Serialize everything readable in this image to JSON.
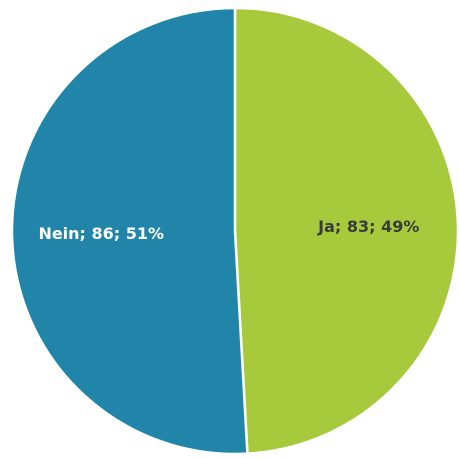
{
  "chart_data": {
    "type": "pie",
    "categories": [
      "Ja",
      "Nein"
    ],
    "values": [
      83,
      86
    ],
    "value_labels": [
      "Ja; 83; 49%",
      "Nein; 86; 51%"
    ],
    "colors": [
      "#a6ca3b",
      "#2185a9"
    ],
    "label_colors": [
      "#3a3a3a",
      "#ffffff"
    ]
  }
}
